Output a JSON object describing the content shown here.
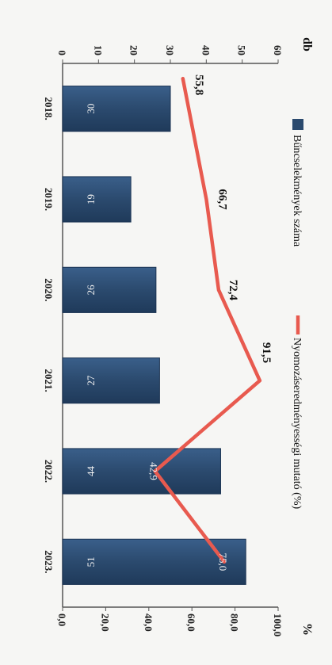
{
  "chart_data": {
    "type": "bar",
    "categories": [
      "2018.",
      "2019.",
      "2020.",
      "2021.",
      "2022.",
      "2023."
    ],
    "series": [
      {
        "name": "Bűncselekmények száma",
        "kind": "bar",
        "axis": "left",
        "color": "#2b4a6e",
        "values": [
          30,
          19,
          26,
          27,
          44,
          51
        ]
      },
      {
        "name": "Nyomozáseredményességi mutató (%)",
        "kind": "line",
        "axis": "right",
        "color": "#e85a4f",
        "values": [
          55.8,
          66.7,
          72.4,
          91.5,
          42.9,
          75.0
        ],
        "labels": [
          "55,8",
          "66,7",
          "72,4",
          "91,5",
          "42,9",
          "75,0"
        ]
      }
    ],
    "y_left": {
      "unit": "db",
      "lim": [
        0,
        60
      ],
      "ticks": [
        "0",
        "10",
        "20",
        "30",
        "40",
        "50",
        "60"
      ]
    },
    "y_right": {
      "unit": "%",
      "lim": [
        0,
        100
      ],
      "ticks": [
        "0,0",
        "20,0",
        "40,0",
        "60,0",
        "80,0",
        "100,0"
      ]
    },
    "grid": false,
    "legend_position": "top",
    "orientation": "rotated-90"
  }
}
